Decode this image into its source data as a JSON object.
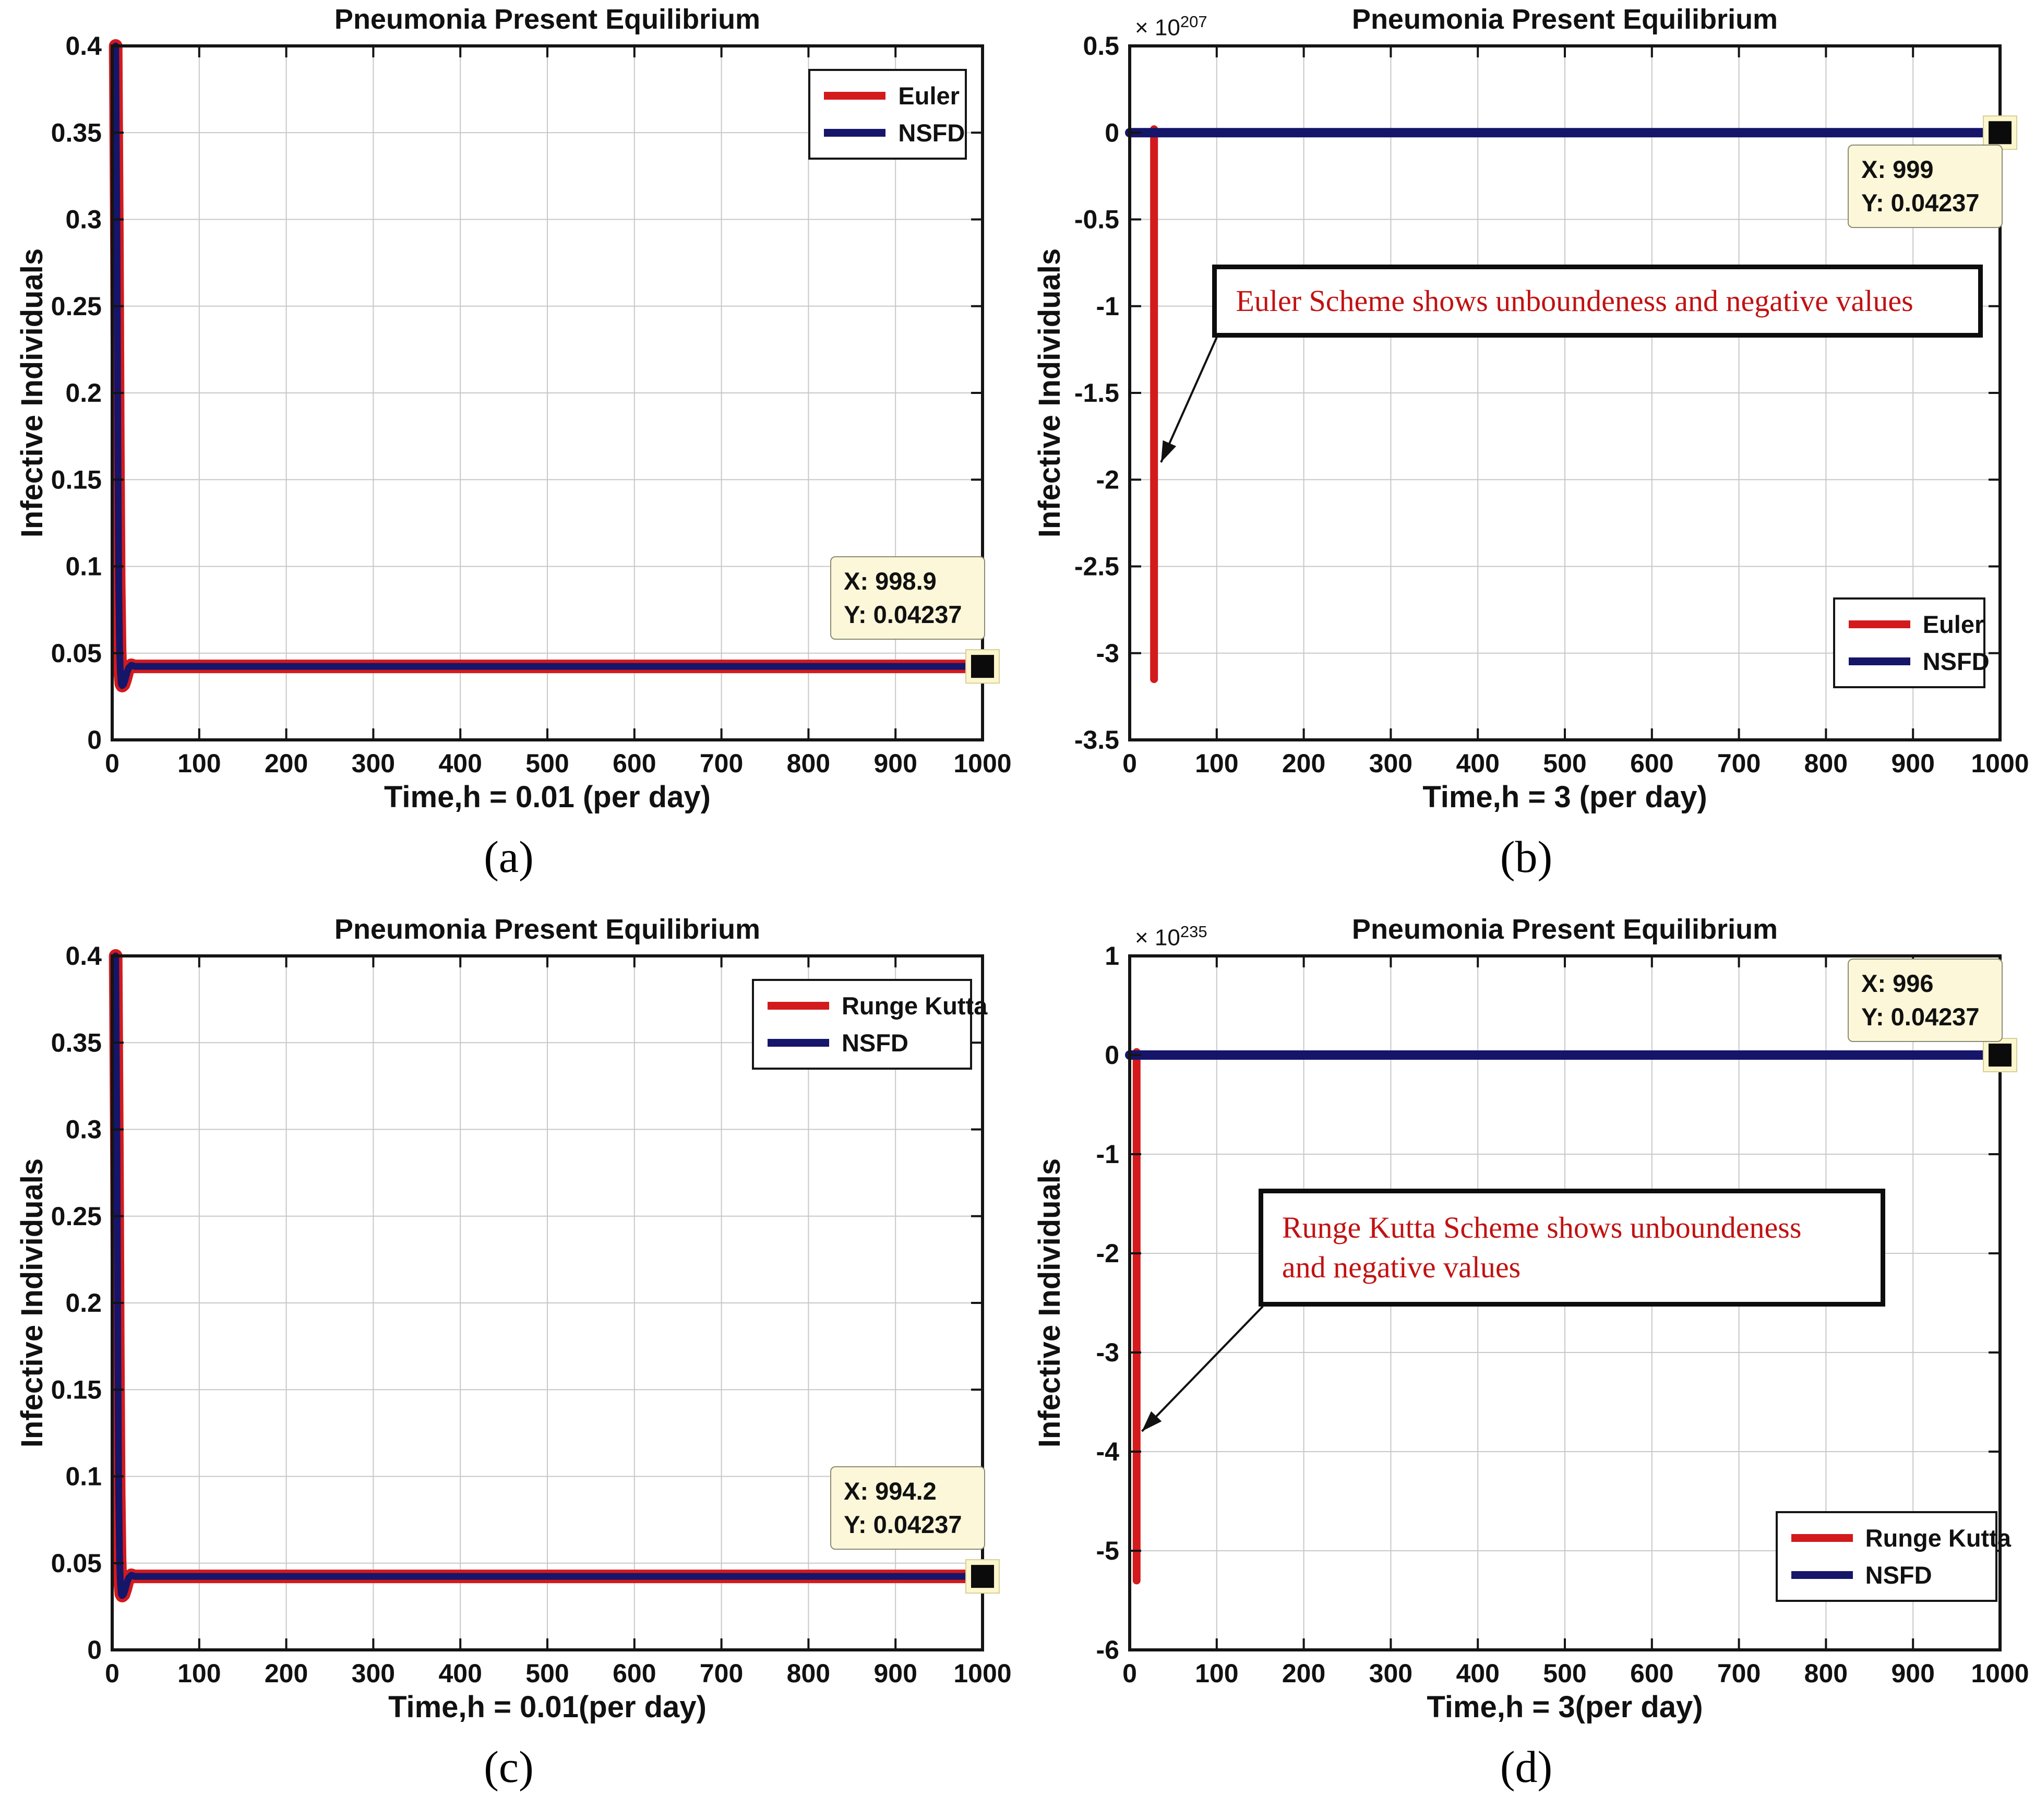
{
  "figure": {
    "background": "#ffffff",
    "grid_color": "#c8c8c8",
    "axis_color": "#141414",
    "red": "#d31a1c",
    "navy": "#15156a",
    "annotation_text_color": "#c11212",
    "datatip_bg": "#fbf7d8",
    "halo_color": "#fcf6cd"
  },
  "chart_data": [
    {
      "id": "a",
      "type": "line",
      "title": "Pneumonia Present Equilibrium",
      "xlabel": "Time,h = 0.01 (per day)",
      "ylabel": "Infective Individuals",
      "caption": "(a)",
      "xlim": [
        0,
        1000
      ],
      "ylim": [
        0,
        0.4
      ],
      "xticks": [
        0,
        100,
        200,
        300,
        400,
        500,
        600,
        700,
        800,
        900,
        1000
      ],
      "yticks": [
        0,
        0.05,
        0.1,
        0.15,
        0.2,
        0.25,
        0.3,
        0.35,
        0.4
      ],
      "series": [
        {
          "name": "Euler",
          "color": "#d31a1c",
          "width": 26,
          "points": [
            [
              4,
              0.4
            ],
            [
              5.5,
              0.28
            ],
            [
              6.5,
              0.17
            ],
            [
              7.5,
              0.09
            ],
            [
              8.5,
              0.052
            ],
            [
              9.5,
              0.038
            ],
            [
              10.5,
              0.0322
            ],
            [
              11.5,
              0.0313
            ],
            [
              13,
              0.032
            ],
            [
              15,
              0.035
            ],
            [
              17,
              0.039
            ],
            [
              19,
              0.0415
            ],
            [
              22,
              0.043
            ],
            [
              26,
              0.04237
            ],
            [
              1000,
              0.04237
            ]
          ]
        },
        {
          "name": "NSFD",
          "color": "#15156a",
          "width": 13,
          "points": [
            [
              4,
              0.4
            ],
            [
              5.5,
              0.28
            ],
            [
              6.5,
              0.17
            ],
            [
              7.5,
              0.09
            ],
            [
              8.5,
              0.052
            ],
            [
              9.5,
              0.038
            ],
            [
              10.5,
              0.0322
            ],
            [
              11.5,
              0.0313
            ],
            [
              13,
              0.032
            ],
            [
              15,
              0.035
            ],
            [
              17,
              0.039
            ],
            [
              19,
              0.0415
            ],
            [
              22,
              0.043
            ],
            [
              26,
              0.04237
            ],
            [
              1000,
              0.04237
            ]
          ]
        }
      ],
      "end_marker": {
        "x": 1000,
        "y": 0.04237
      },
      "datatip": {
        "line1": "X: 998.9",
        "line2": "Y: 0.04237",
        "left_f": 0.825,
        "top_f": 0.735,
        "w_f": 0.178
      },
      "legend": {
        "left_f": 0.8,
        "top_f": 0.033,
        "w_f": 0.182,
        "item1": {
          "label": "Euler",
          "color": "#d31a1c"
        },
        "item2": {
          "label": "NSFD",
          "color": "#15156a"
        }
      }
    },
    {
      "id": "b",
      "type": "line",
      "title": "Pneumonia Present Equilibrium",
      "xlabel": "Time,h = 3 (per day)",
      "ylabel": "Infective Individuals",
      "caption": "(b)",
      "multiplier": {
        "prefix": "× 10",
        "exp": "207"
      },
      "xlim": [
        0,
        1000
      ],
      "ylim": [
        -3.5,
        0.5
      ],
      "xticks": [
        0,
        100,
        200,
        300,
        400,
        500,
        600,
        700,
        800,
        900,
        1000
      ],
      "yticks": [
        0.5,
        0,
        -0.5,
        -1,
        -1.5,
        -2,
        -2.5,
        -3,
        -3.5
      ],
      "series": [
        {
          "name": "Euler",
          "color": "#d31a1c",
          "width": 15,
          "points": [
            [
              28,
              0.02
            ],
            [
              28,
              -3.15
            ]
          ]
        },
        {
          "name": "NSFD",
          "color": "#15156a",
          "width": 18,
          "points": [
            [
              0,
              0
            ],
            [
              1000,
              0
            ]
          ]
        }
      ],
      "end_marker": {
        "x": 1000,
        "y": 0
      },
      "datatip": {
        "line1": "X: 999",
        "line2": "Y: 0.04237",
        "left_f": 0.825,
        "top_f": 0.142,
        "w_f": 0.178
      },
      "legend": {
        "left_f": 0.808,
        "top_f": 0.795,
        "w_f": 0.175,
        "item1": {
          "label": "Euler",
          "color": "#d31a1c"
        },
        "item2": {
          "label": "NSFD",
          "color": "#15156a"
        }
      },
      "annotation": {
        "line1": "Euler Scheme shows unboundeness and negative values",
        "left_f": 0.095,
        "top_f": 0.315,
        "w_f": 0.885,
        "h_f": 0.105,
        "tip_fx": 0.036,
        "tip_fy": 0.6
      }
    },
    {
      "id": "c",
      "type": "line",
      "title": "Pneumonia Present Equilibrium",
      "xlabel": "Time,h = 0.01(per day)",
      "ylabel": "Infective Individuals",
      "caption": "(c)",
      "xlim": [
        0,
        1000
      ],
      "ylim": [
        0,
        0.4
      ],
      "xticks": [
        0,
        100,
        200,
        300,
        400,
        500,
        600,
        700,
        800,
        900,
        1000
      ],
      "yticks": [
        0,
        0.05,
        0.1,
        0.15,
        0.2,
        0.25,
        0.3,
        0.35,
        0.4
      ],
      "series": [
        {
          "name": "Runge Kutta",
          "color": "#d31a1c",
          "width": 26,
          "points": [
            [
              4,
              0.4
            ],
            [
              5.5,
              0.28
            ],
            [
              6.5,
              0.17
            ],
            [
              7.5,
              0.09
            ],
            [
              8.5,
              0.052
            ],
            [
              9.5,
              0.038
            ],
            [
              10.5,
              0.0322
            ],
            [
              11.5,
              0.0313
            ],
            [
              13,
              0.032
            ],
            [
              15,
              0.035
            ],
            [
              17,
              0.039
            ],
            [
              19,
              0.0415
            ],
            [
              22,
              0.043
            ],
            [
              26,
              0.04237
            ],
            [
              1000,
              0.04237
            ]
          ]
        },
        {
          "name": "NSFD",
          "color": "#15156a",
          "width": 13,
          "points": [
            [
              4,
              0.4
            ],
            [
              5.5,
              0.28
            ],
            [
              6.5,
              0.17
            ],
            [
              7.5,
              0.09
            ],
            [
              8.5,
              0.052
            ],
            [
              9.5,
              0.038
            ],
            [
              10.5,
              0.0322
            ],
            [
              11.5,
              0.0313
            ],
            [
              13,
              0.032
            ],
            [
              15,
              0.035
            ],
            [
              17,
              0.039
            ],
            [
              19,
              0.0415
            ],
            [
              22,
              0.043
            ],
            [
              26,
              0.04237
            ],
            [
              1000,
              0.04237
            ]
          ]
        }
      ],
      "end_marker": {
        "x": 1000,
        "y": 0.04237
      },
      "datatip": {
        "line1": "X: 994.2",
        "line2": "Y: 0.04237",
        "left_f": 0.825,
        "top_f": 0.735,
        "w_f": 0.178
      },
      "legend": {
        "left_f": 0.735,
        "top_f": 0.033,
        "w_f": 0.253,
        "item1": {
          "label": "Runge Kutta",
          "color": "#d31a1c"
        },
        "item2": {
          "label": "NSFD",
          "color": "#15156a"
        }
      }
    },
    {
      "id": "d",
      "type": "line",
      "title": "Pneumonia Present Equilibrium",
      "xlabel": "Time,h = 3(per day)",
      "ylabel": "Infective Individuals",
      "caption": "(d)",
      "multiplier": {
        "prefix": "× 10",
        "exp": "235"
      },
      "xlim": [
        0,
        1000
      ],
      "ylim": [
        -6,
        1
      ],
      "xticks": [
        0,
        100,
        200,
        300,
        400,
        500,
        600,
        700,
        800,
        900,
        1000
      ],
      "yticks": [
        1,
        0,
        -1,
        -2,
        -3,
        -4,
        -5,
        -6
      ],
      "series": [
        {
          "name": "Runge Kutta",
          "color": "#d31a1c",
          "width": 15,
          "points": [
            [
              8,
              0.03
            ],
            [
              8,
              -5.3
            ]
          ]
        },
        {
          "name": "NSFD",
          "color": "#15156a",
          "width": 18,
          "points": [
            [
              0,
              0
            ],
            [
              1000,
              0
            ]
          ]
        }
      ],
      "end_marker": {
        "x": 1000,
        "y": 0
      },
      "datatip": {
        "line1": "X: 996",
        "line2": "Y: 0.04237",
        "left_f": 0.825,
        "top_f": 0.004,
        "w_f": 0.178
      },
      "legend": {
        "left_f": 0.742,
        "top_f": 0.8,
        "w_f": 0.255,
        "item1": {
          "label": "Runge Kutta",
          "color": "#d31a1c"
        },
        "item2": {
          "label": "NSFD",
          "color": "#15156a"
        }
      },
      "annotation": {
        "line1": "Runge Kutta Scheme shows unboundeness",
        "line2": "and negative values",
        "left_f": 0.148,
        "top_f": 0.335,
        "w_f": 0.72,
        "h_f": 0.17,
        "tip_fx": 0.014,
        "tip_fy": 0.685
      }
    }
  ]
}
